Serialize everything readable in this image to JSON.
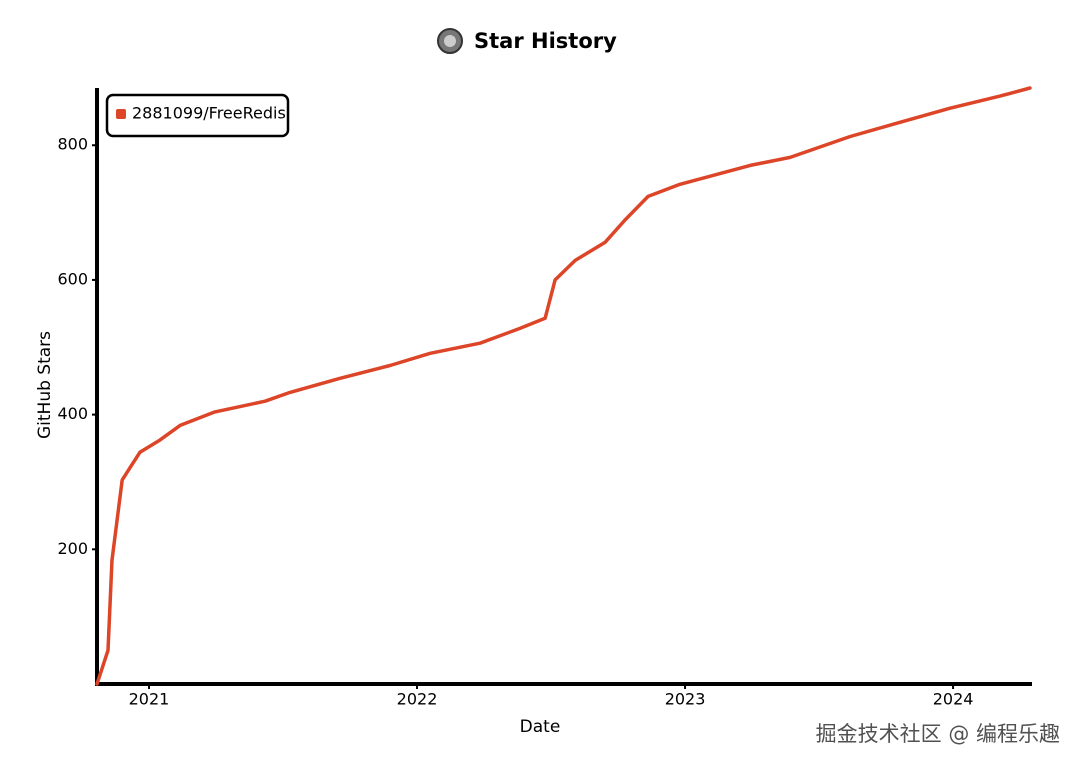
{
  "chart_data": {
    "type": "line",
    "title": "Star History",
    "xlabel": "Date",
    "ylabel": "GitHub Stars",
    "x": [
      2020.806,
      2020.847,
      2020.862,
      2020.9,
      2020.966,
      2021.04,
      2021.116,
      2021.246,
      2021.433,
      2021.526,
      2021.713,
      2021.899,
      2022.049,
      2022.235,
      2022.384,
      2022.478,
      2022.515,
      2022.59,
      2022.702,
      2022.776,
      2022.862,
      2022.981,
      2023.243,
      2023.392,
      2023.616,
      2023.802,
      2023.989,
      2024.175,
      2024.287
    ],
    "series": [
      {
        "name": "2881099/FreeRedis",
        "color": "#dd4528",
        "values": [
          0,
          50,
          184,
          303,
          344,
          362,
          384,
          404,
          420,
          433,
          454,
          473,
          491,
          506,
          528,
          543,
          600,
          629,
          656,
          689,
          724,
          742,
          770,
          782,
          813,
          834,
          855,
          873,
          885
        ]
      }
    ],
    "xlim": [
      2020.806,
      2024.287
    ],
    "xticks": [
      2021,
      2022,
      2023,
      2024
    ],
    "ylim": [
      0,
      885
    ],
    "yticks": [
      200,
      400,
      600,
      800
    ],
    "grid": false,
    "legend": "upper left",
    "watermark": "掘金技术社区 @ 编程乐趣"
  }
}
